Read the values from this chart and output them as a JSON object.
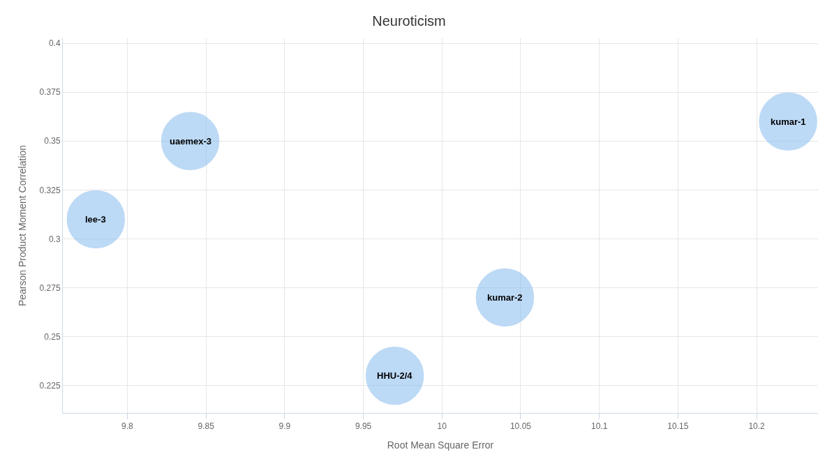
{
  "chart_data": {
    "type": "bubble",
    "title": "Neuroticism",
    "xlabel": "Root Mean Square Error",
    "ylabel": "Pearson Product Moment Correlation",
    "x": [
      9.78,
      9.84,
      9.97,
      10.04,
      10.22
    ],
    "series": [
      {
        "color": "#7cb5ec",
        "values": [
          0.31,
          0.35,
          0.23,
          0.27,
          0.36
        ],
        "sizes": [
          1,
          1,
          1,
          1,
          1
        ]
      }
    ],
    "annotations": [
      {
        "text": "lee-3",
        "x": 9.78,
        "y": 0.31
      },
      {
        "text": "uaemex-3",
        "x": 9.84,
        "y": 0.35
      },
      {
        "text": "HHU-2/4",
        "x": 9.97,
        "y": 0.23
      },
      {
        "text": "kumar-2",
        "x": 10.04,
        "y": 0.27
      },
      {
        "text": "kumar-1",
        "x": 10.22,
        "y": 0.36
      }
    ],
    "xlim": [
      9.759,
      10.239
    ],
    "xticks": [
      9.8,
      9.85,
      9.9,
      9.95,
      10,
      10.05,
      10.1,
      10.15,
      10.2
    ],
    "ylim": [
      0.211,
      0.4025
    ],
    "yticks": [
      0.225,
      0.25,
      0.275,
      0.3,
      0.325,
      0.35,
      0.375,
      0.4
    ],
    "grid": true
  }
}
